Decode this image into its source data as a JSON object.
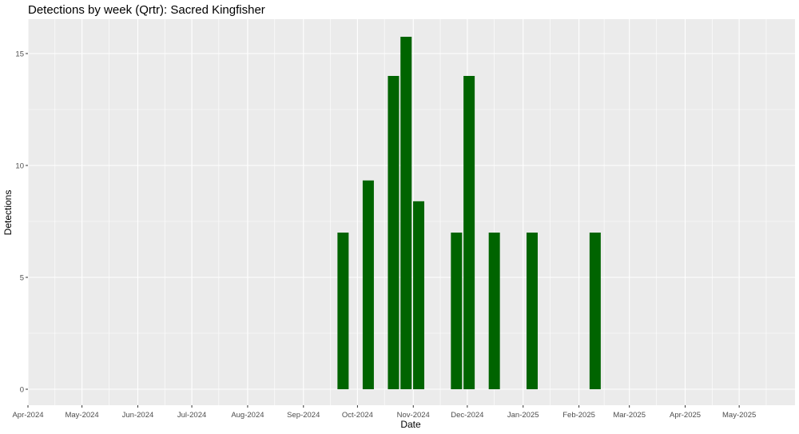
{
  "chart_data": {
    "type": "bar",
    "title": "Detections by week (Qrtr): Sacred Kingfisher",
    "xlabel": "Date",
    "ylabel": "Detections",
    "x_range": [
      "2024-04-01",
      "2025-06-01"
    ],
    "ylim": [
      0,
      17
    ],
    "y_ticks": [
      0,
      5,
      10,
      15
    ],
    "x_ticks": [
      {
        "date": "2024-04-01",
        "label": "Apr-2024"
      },
      {
        "date": "2024-05-01",
        "label": "May-2024"
      },
      {
        "date": "2024-06-01",
        "label": "Jun-2024"
      },
      {
        "date": "2024-07-01",
        "label": "Jul-2024"
      },
      {
        "date": "2024-08-01",
        "label": "Aug-2024"
      },
      {
        "date": "2024-09-01",
        "label": "Sep-2024"
      },
      {
        "date": "2024-10-01",
        "label": "Oct-2024"
      },
      {
        "date": "2024-11-01",
        "label": "Nov-2024"
      },
      {
        "date": "2024-12-01",
        "label": "Dec-2024"
      },
      {
        "date": "2025-01-01",
        "label": "Jan-2025"
      },
      {
        "date": "2025-02-01",
        "label": "Feb-2025"
      },
      {
        "date": "2025-03-01",
        "label": "Mar-2025"
      },
      {
        "date": "2025-04-01",
        "label": "Apr-2025"
      },
      {
        "date": "2025-05-01",
        "label": "May-2025"
      }
    ],
    "points": [
      {
        "x": "2024-09-23",
        "y": 7
      },
      {
        "x": "2024-10-07",
        "y": 9.33
      },
      {
        "x": "2024-10-21",
        "y": 14
      },
      {
        "x": "2024-10-28",
        "y": 15.75
      },
      {
        "x": "2024-11-04",
        "y": 8.4
      },
      {
        "x": "2024-11-25",
        "y": 7
      },
      {
        "x": "2024-12-02",
        "y": 14
      },
      {
        "x": "2024-12-16",
        "y": 7
      },
      {
        "x": "2025-01-06",
        "y": 7
      },
      {
        "x": "2025-02-10",
        "y": 7
      }
    ],
    "grid": true,
    "colors": {
      "bar": "#006400",
      "panel": "#ebebeb",
      "grid": "#ffffff"
    }
  }
}
